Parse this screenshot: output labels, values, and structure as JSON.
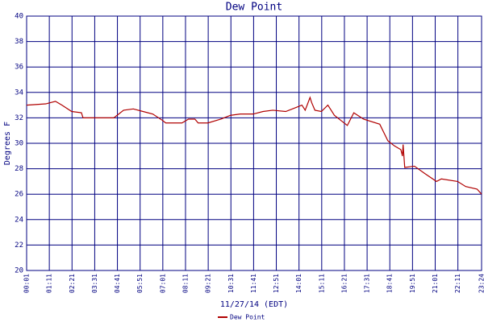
{
  "chart_data": {
    "type": "line",
    "title": "Dew Point",
    "x_label": "11/27/14 (EDT)",
    "y_label": "Degrees F",
    "x": [
      1,
      60,
      90,
      110,
      140,
      170,
      175,
      270,
      280,
      300,
      330,
      360,
      390,
      420,
      430,
      480,
      500,
      520,
      530,
      560,
      600,
      630,
      660,
      700,
      730,
      760,
      800,
      830,
      850,
      860,
      875,
      880,
      890,
      910,
      930,
      950,
      970,
      990,
      1010,
      1040,
      1090,
      1115,
      1135,
      1155,
      1160,
      1162,
      1167,
      1197,
      1230,
      1265,
      1280,
      1330,
      1355,
      1390,
      1404
    ],
    "series": [
      {
        "name": "Dew Point",
        "color": "#b00000",
        "values": [
          33.0,
          33.1,
          33.3,
          33.0,
          32.5,
          32.4,
          32.0,
          32.0,
          32.2,
          32.6,
          32.7,
          32.5,
          32.3,
          31.8,
          31.6,
          31.6,
          31.9,
          31.9,
          31.6,
          31.6,
          31.9,
          32.2,
          32.3,
          32.3,
          32.5,
          32.6,
          32.5,
          32.8,
          33.0,
          32.6,
          33.6,
          33.2,
          32.6,
          32.5,
          33.0,
          32.2,
          31.8,
          31.4,
          32.4,
          31.9,
          31.5,
          30.2,
          29.8,
          29.5,
          29.0,
          29.9,
          28.1,
          28.2,
          27.6,
          27.0,
          27.2,
          27.0,
          26.6,
          26.4,
          26.0
        ]
      }
    ],
    "xlim": [
      1,
      1404
    ],
    "xticks": [
      {
        "value": 1,
        "label": "00:01"
      },
      {
        "value": 71,
        "label": "01:11"
      },
      {
        "value": 141,
        "label": "02:21"
      },
      {
        "value": 211,
        "label": "03:31"
      },
      {
        "value": 281,
        "label": "04:41"
      },
      {
        "value": 351,
        "label": "05:51"
      },
      {
        "value": 421,
        "label": "07:01"
      },
      {
        "value": 491,
        "label": "08:11"
      },
      {
        "value": 561,
        "label": "09:21"
      },
      {
        "value": 631,
        "label": "10:31"
      },
      {
        "value": 701,
        "label": "11:41"
      },
      {
        "value": 771,
        "label": "12:51"
      },
      {
        "value": 841,
        "label": "14:01"
      },
      {
        "value": 911,
        "label": "15:11"
      },
      {
        "value": 981,
        "label": "16:21"
      },
      {
        "value": 1051,
        "label": "17:31"
      },
      {
        "value": 1121,
        "label": "18:41"
      },
      {
        "value": 1191,
        "label": "19:51"
      },
      {
        "value": 1261,
        "label": "21:01"
      },
      {
        "value": 1331,
        "label": "22:11"
      },
      {
        "value": 1404,
        "label": "23:24"
      }
    ],
    "ylim": [
      20,
      40
    ],
    "yticks": [
      20,
      22,
      24,
      26,
      28,
      30,
      32,
      34,
      36,
      38,
      40
    ],
    "grid": true
  }
}
